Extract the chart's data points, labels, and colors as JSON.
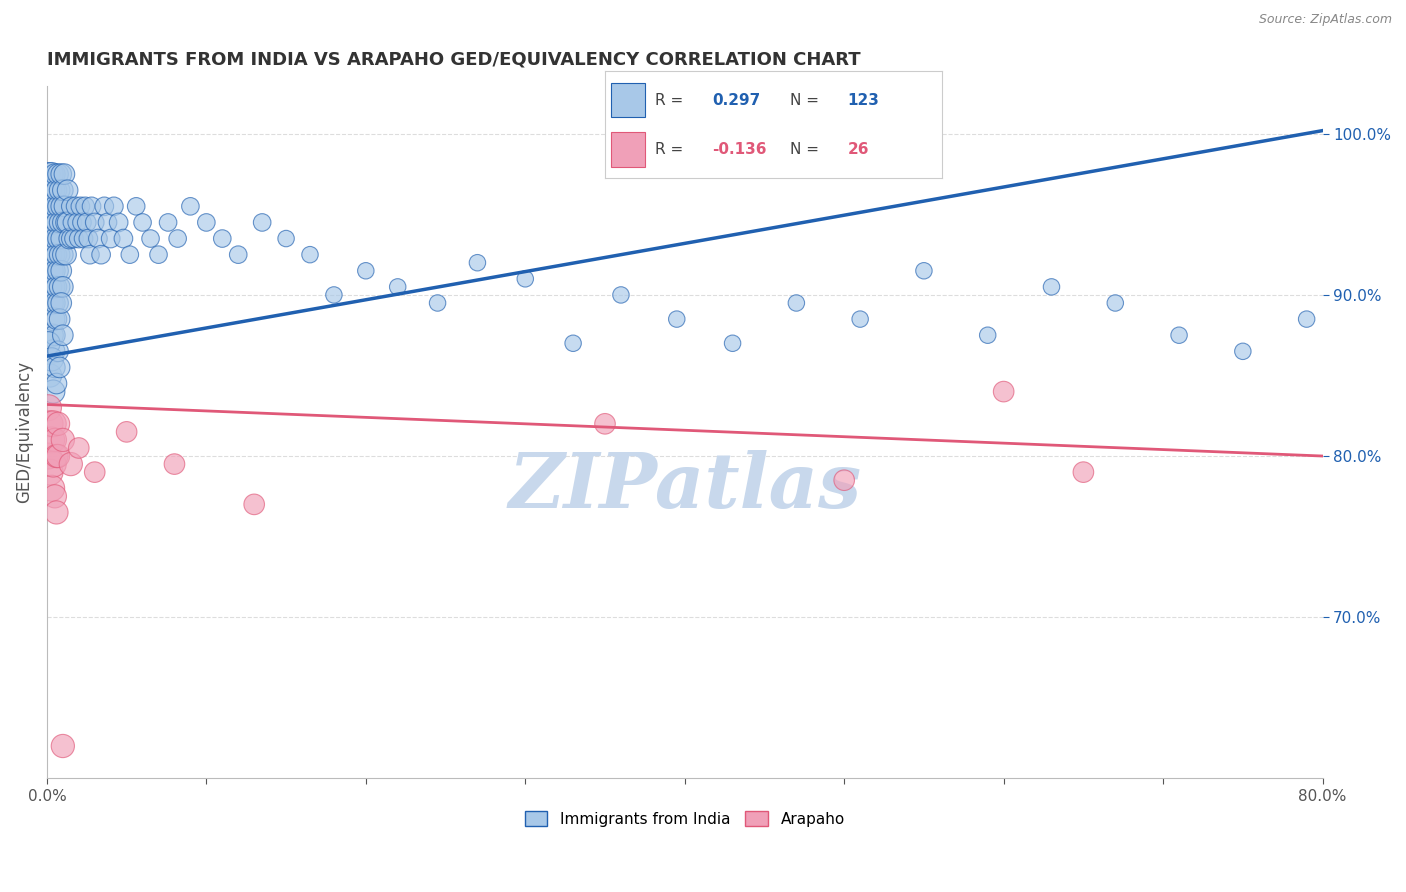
{
  "title": "IMMIGRANTS FROM INDIA VS ARAPAHO GED/EQUIVALENCY CORRELATION CHART",
  "source_text": "Source: ZipAtlas.com",
  "xlabel_blue": "Immigrants from India",
  "xlabel_pink": "Arapaho",
  "ylabel": "GED/Equivalency",
  "R_blue": 0.297,
  "N_blue": 123,
  "R_pink": -0.136,
  "N_pink": 26,
  "x_min": 0.0,
  "x_max": 0.8,
  "y_min": 0.6,
  "y_max": 1.03,
  "yticks": [
    0.7,
    0.8,
    0.9,
    1.0
  ],
  "ytick_labels": [
    "70.0%",
    "80.0%",
    "90.0%",
    "100.0%"
  ],
  "xtick_labels_ends": [
    "0.0%",
    "80.0%"
  ],
  "blue_color": "#A8C8E8",
  "pink_color": "#F0A0B8",
  "blue_line_color": "#2060B0",
  "pink_line_color": "#E05878",
  "blue_trend_x0": 0.0,
  "blue_trend_y0": 0.862,
  "blue_trend_x1": 0.8,
  "blue_trend_y1": 1.002,
  "pink_trend_x0": 0.0,
  "pink_trend_y0": 0.832,
  "pink_trend_x1": 0.8,
  "pink_trend_y1": 0.8,
  "blue_scatter": [
    [
      0.001,
      0.955
    ],
    [
      0.001,
      0.975
    ],
    [
      0.001,
      0.935
    ],
    [
      0.002,
      0.965
    ],
    [
      0.002,
      0.945
    ],
    [
      0.002,
      0.925
    ],
    [
      0.002,
      0.905
    ],
    [
      0.003,
      0.975
    ],
    [
      0.003,
      0.955
    ],
    [
      0.003,
      0.935
    ],
    [
      0.003,
      0.915
    ],
    [
      0.003,
      0.895
    ],
    [
      0.003,
      0.875
    ],
    [
      0.004,
      0.965
    ],
    [
      0.004,
      0.945
    ],
    [
      0.004,
      0.925
    ],
    [
      0.004,
      0.905
    ],
    [
      0.004,
      0.885
    ],
    [
      0.004,
      0.865
    ],
    [
      0.005,
      0.975
    ],
    [
      0.005,
      0.955
    ],
    [
      0.005,
      0.935
    ],
    [
      0.005,
      0.915
    ],
    [
      0.005,
      0.895
    ],
    [
      0.005,
      0.875
    ],
    [
      0.006,
      0.965
    ],
    [
      0.006,
      0.945
    ],
    [
      0.006,
      0.925
    ],
    [
      0.006,
      0.905
    ],
    [
      0.006,
      0.885
    ],
    [
      0.007,
      0.975
    ],
    [
      0.007,
      0.955
    ],
    [
      0.007,
      0.935
    ],
    [
      0.007,
      0.915
    ],
    [
      0.007,
      0.895
    ],
    [
      0.008,
      0.965
    ],
    [
      0.008,
      0.945
    ],
    [
      0.008,
      0.925
    ],
    [
      0.008,
      0.905
    ],
    [
      0.008,
      0.885
    ],
    [
      0.009,
      0.975
    ],
    [
      0.009,
      0.955
    ],
    [
      0.009,
      0.935
    ],
    [
      0.009,
      0.915
    ],
    [
      0.01,
      0.965
    ],
    [
      0.01,
      0.945
    ],
    [
      0.01,
      0.925
    ],
    [
      0.01,
      0.905
    ],
    [
      0.011,
      0.975
    ],
    [
      0.011,
      0.955
    ],
    [
      0.012,
      0.945
    ],
    [
      0.012,
      0.925
    ],
    [
      0.013,
      0.965
    ],
    [
      0.013,
      0.945
    ],
    [
      0.014,
      0.935
    ],
    [
      0.015,
      0.955
    ],
    [
      0.015,
      0.935
    ],
    [
      0.016,
      0.945
    ],
    [
      0.017,
      0.935
    ],
    [
      0.018,
      0.955
    ],
    [
      0.019,
      0.945
    ],
    [
      0.02,
      0.935
    ],
    [
      0.021,
      0.955
    ],
    [
      0.022,
      0.945
    ],
    [
      0.023,
      0.935
    ],
    [
      0.024,
      0.955
    ],
    [
      0.025,
      0.945
    ],
    [
      0.026,
      0.935
    ],
    [
      0.027,
      0.925
    ],
    [
      0.028,
      0.955
    ],
    [
      0.03,
      0.945
    ],
    [
      0.032,
      0.935
    ],
    [
      0.034,
      0.925
    ],
    [
      0.036,
      0.955
    ],
    [
      0.038,
      0.945
    ],
    [
      0.04,
      0.935
    ],
    [
      0.042,
      0.955
    ],
    [
      0.045,
      0.945
    ],
    [
      0.048,
      0.935
    ],
    [
      0.052,
      0.925
    ],
    [
      0.056,
      0.955
    ],
    [
      0.06,
      0.945
    ],
    [
      0.065,
      0.935
    ],
    [
      0.07,
      0.925
    ],
    [
      0.076,
      0.945
    ],
    [
      0.082,
      0.935
    ],
    [
      0.09,
      0.955
    ],
    [
      0.1,
      0.945
    ],
    [
      0.11,
      0.935
    ],
    [
      0.12,
      0.925
    ],
    [
      0.135,
      0.945
    ],
    [
      0.15,
      0.935
    ],
    [
      0.165,
      0.925
    ],
    [
      0.18,
      0.9
    ],
    [
      0.2,
      0.915
    ],
    [
      0.22,
      0.905
    ],
    [
      0.245,
      0.895
    ],
    [
      0.27,
      0.92
    ],
    [
      0.3,
      0.91
    ],
    [
      0.33,
      0.87
    ],
    [
      0.36,
      0.9
    ],
    [
      0.395,
      0.885
    ],
    [
      0.43,
      0.87
    ],
    [
      0.47,
      0.895
    ],
    [
      0.51,
      0.885
    ],
    [
      0.55,
      0.915
    ],
    [
      0.59,
      0.875
    ],
    [
      0.63,
      0.905
    ],
    [
      0.67,
      0.895
    ],
    [
      0.71,
      0.875
    ],
    [
      0.75,
      0.865
    ],
    [
      0.79,
      0.885
    ],
    [
      0.001,
      0.87
    ],
    [
      0.002,
      0.85
    ],
    [
      0.003,
      0.86
    ],
    [
      0.004,
      0.84
    ],
    [
      0.005,
      0.855
    ],
    [
      0.006,
      0.845
    ],
    [
      0.007,
      0.865
    ],
    [
      0.008,
      0.855
    ],
    [
      0.009,
      0.895
    ],
    [
      0.01,
      0.875
    ]
  ],
  "pink_scatter": [
    [
      0.001,
      0.83
    ],
    [
      0.001,
      0.8
    ],
    [
      0.002,
      0.82
    ],
    [
      0.002,
      0.79
    ],
    [
      0.003,
      0.81
    ],
    [
      0.003,
      0.78
    ],
    [
      0.004,
      0.82
    ],
    [
      0.004,
      0.795
    ],
    [
      0.005,
      0.775
    ],
    [
      0.005,
      0.81
    ],
    [
      0.006,
      0.8
    ],
    [
      0.006,
      0.765
    ],
    [
      0.007,
      0.82
    ],
    [
      0.007,
      0.8
    ],
    [
      0.01,
      0.81
    ],
    [
      0.015,
      0.795
    ],
    [
      0.02,
      0.805
    ],
    [
      0.03,
      0.79
    ],
    [
      0.05,
      0.815
    ],
    [
      0.08,
      0.795
    ],
    [
      0.13,
      0.77
    ],
    [
      0.35,
      0.82
    ],
    [
      0.5,
      0.785
    ],
    [
      0.6,
      0.84
    ],
    [
      0.65,
      0.79
    ],
    [
      0.01,
      0.62
    ]
  ],
  "watermark": "ZIPatlas",
  "watermark_color": "#C8D8EC",
  "title_color": "#333333",
  "axis_label_color": "#555555",
  "tick_label_color": "#555555"
}
